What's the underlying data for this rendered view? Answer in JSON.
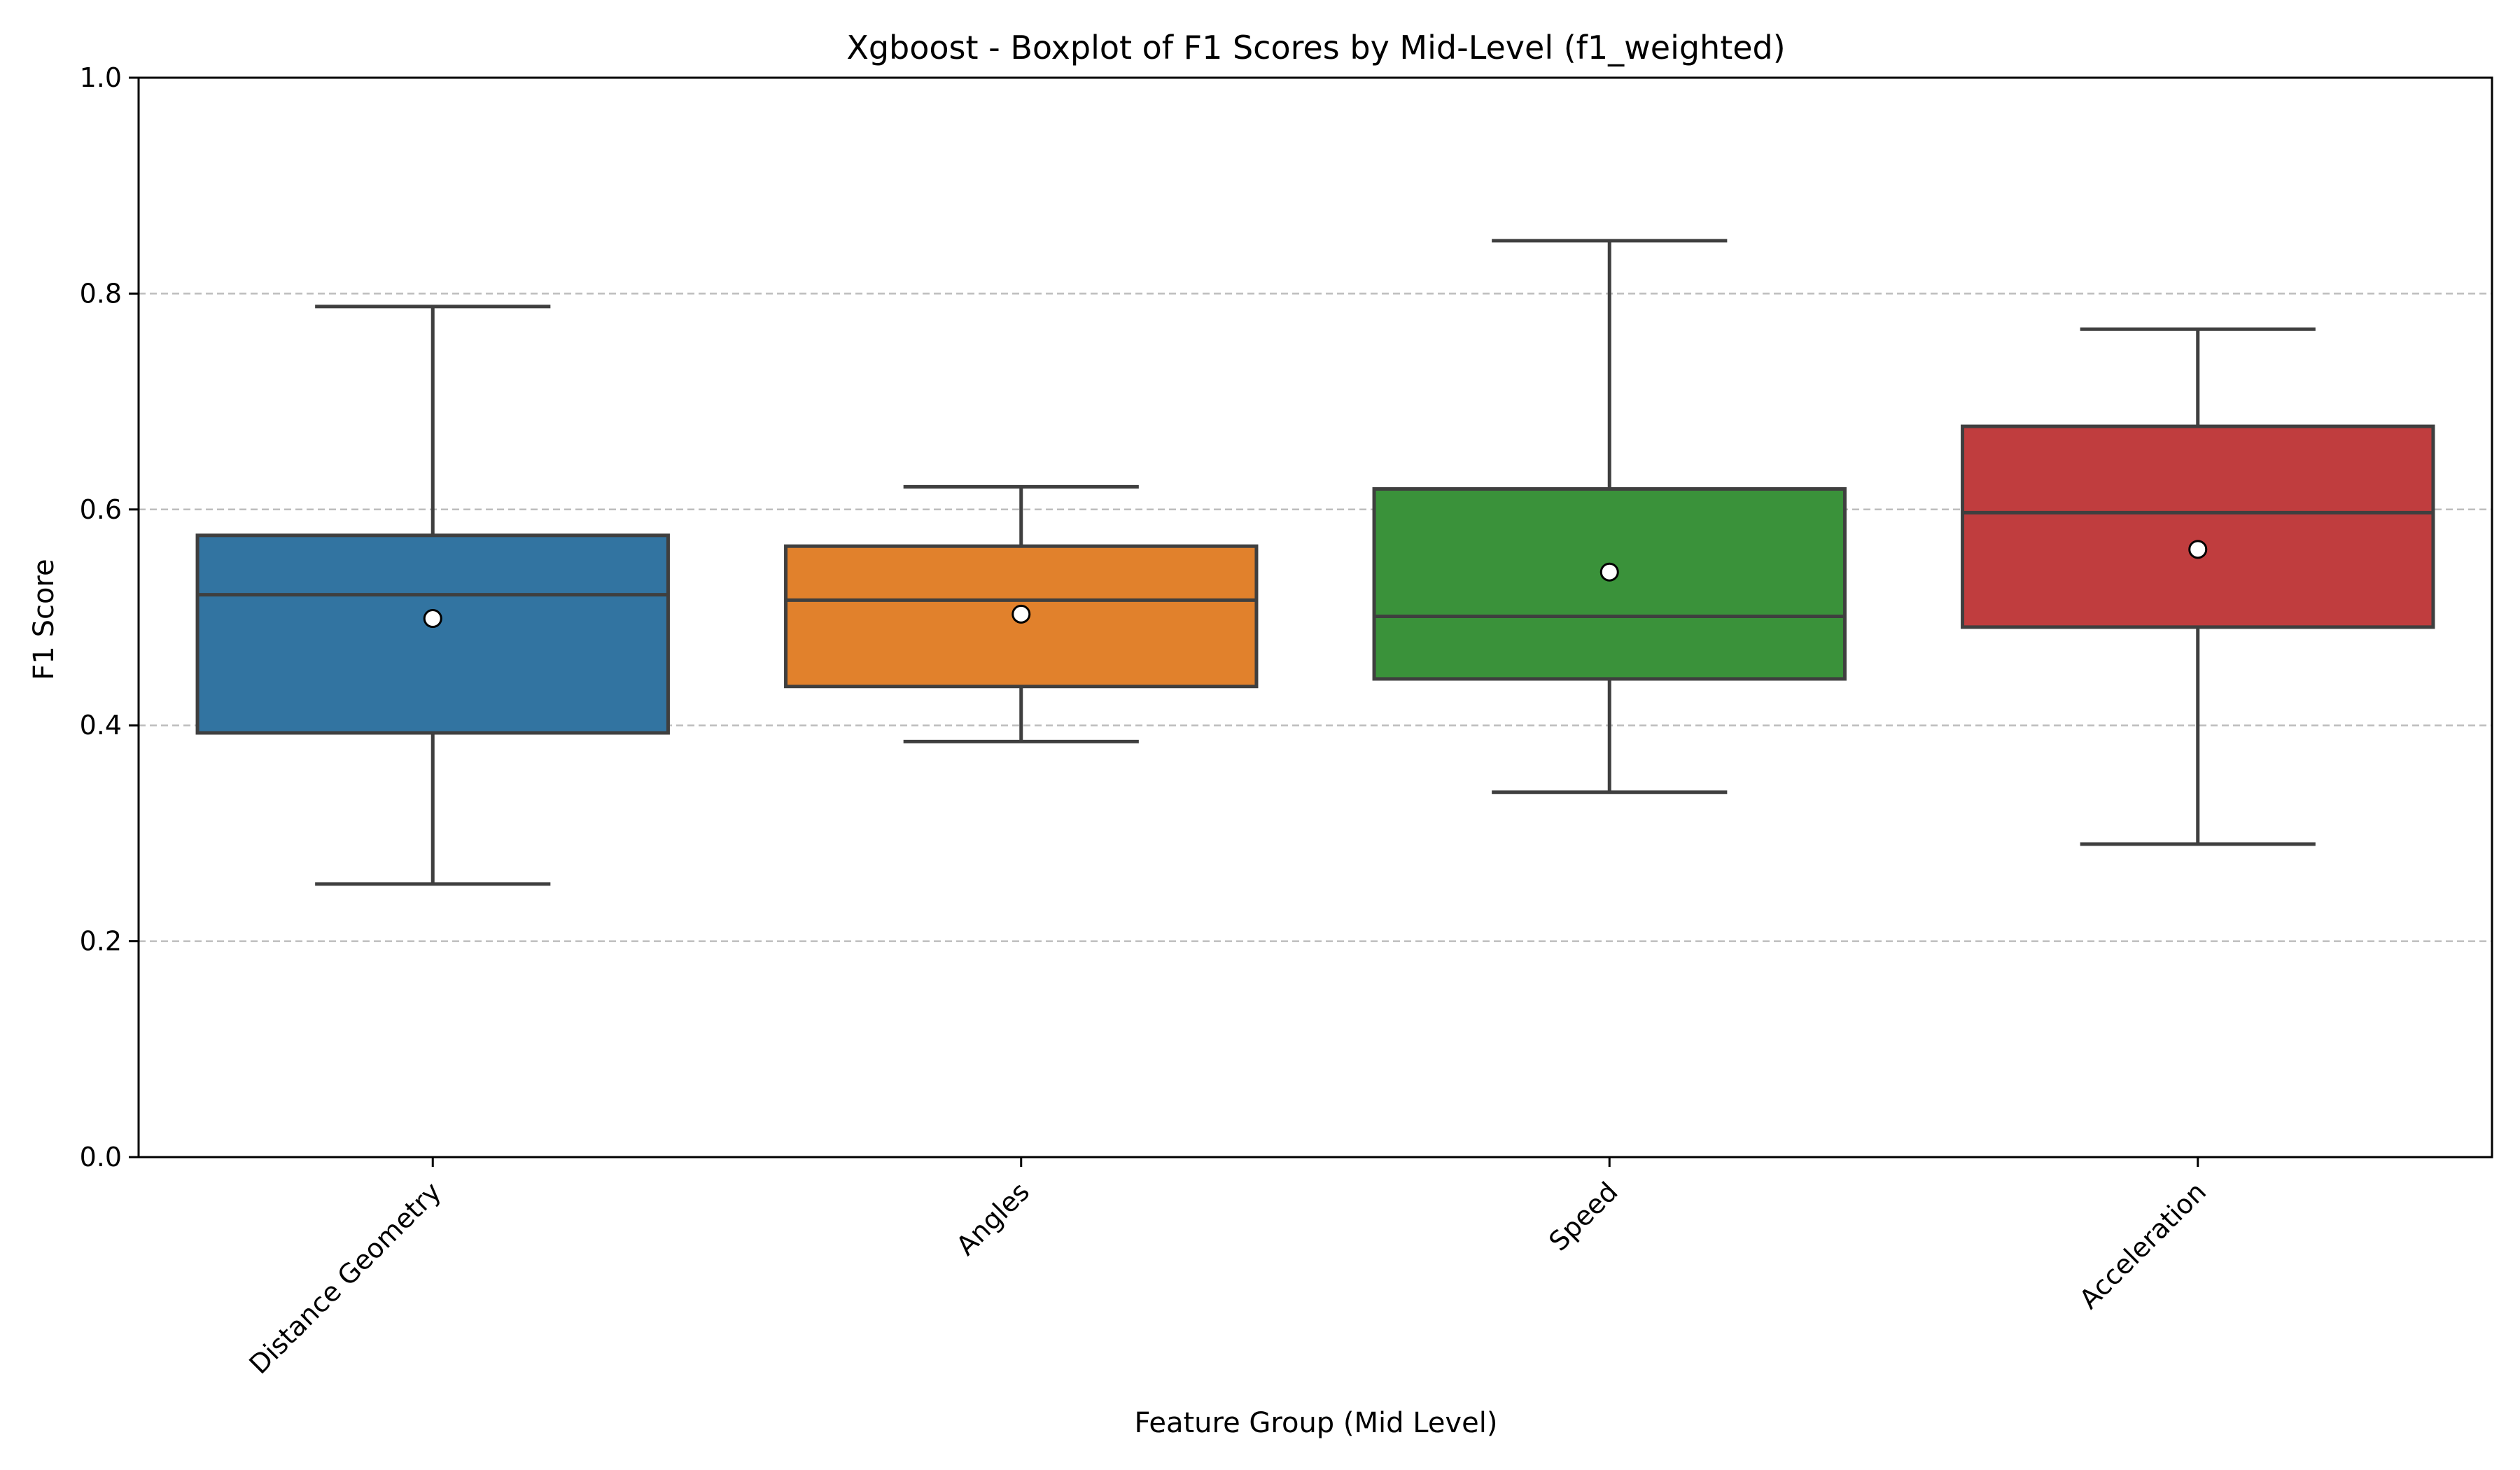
{
  "chart_data": {
    "type": "box",
    "title": "Xgboost - Boxplot of F1 Scores by Mid-Level (f1_weighted)",
    "xlabel": "Feature Group (Mid Level)",
    "ylabel": "F1 Score",
    "ylim": [
      0,
      1
    ],
    "yticks": [
      "0.0",
      "0.2",
      "0.4",
      "0.6",
      "0.8",
      "1.0"
    ],
    "grid": "y-dashed",
    "categories": [
      "Distance Geometry",
      "Angles",
      "Speed",
      "Acceleration"
    ],
    "boxes": [
      {
        "name": "Distance Geometry",
        "color": "#3274a1",
        "whisker_low": 0.253,
        "q1": 0.393,
        "median": 0.521,
        "q3": 0.576,
        "whisker_high": 0.788,
        "mean": 0.499
      },
      {
        "name": "Angles",
        "color": "#e1812c",
        "whisker_low": 0.385,
        "q1": 0.436,
        "median": 0.516,
        "q3": 0.566,
        "whisker_high": 0.621,
        "mean": 0.503
      },
      {
        "name": "Speed",
        "color": "#3a923a",
        "whisker_low": 0.338,
        "q1": 0.443,
        "median": 0.501,
        "q3": 0.619,
        "whisker_high": 0.849,
        "mean": 0.542
      },
      {
        "name": "Acceleration",
        "color": "#c03d3e",
        "whisker_low": 0.29,
        "q1": 0.491,
        "median": 0.597,
        "q3": 0.677,
        "whisker_high": 0.767,
        "mean": 0.563
      }
    ]
  }
}
